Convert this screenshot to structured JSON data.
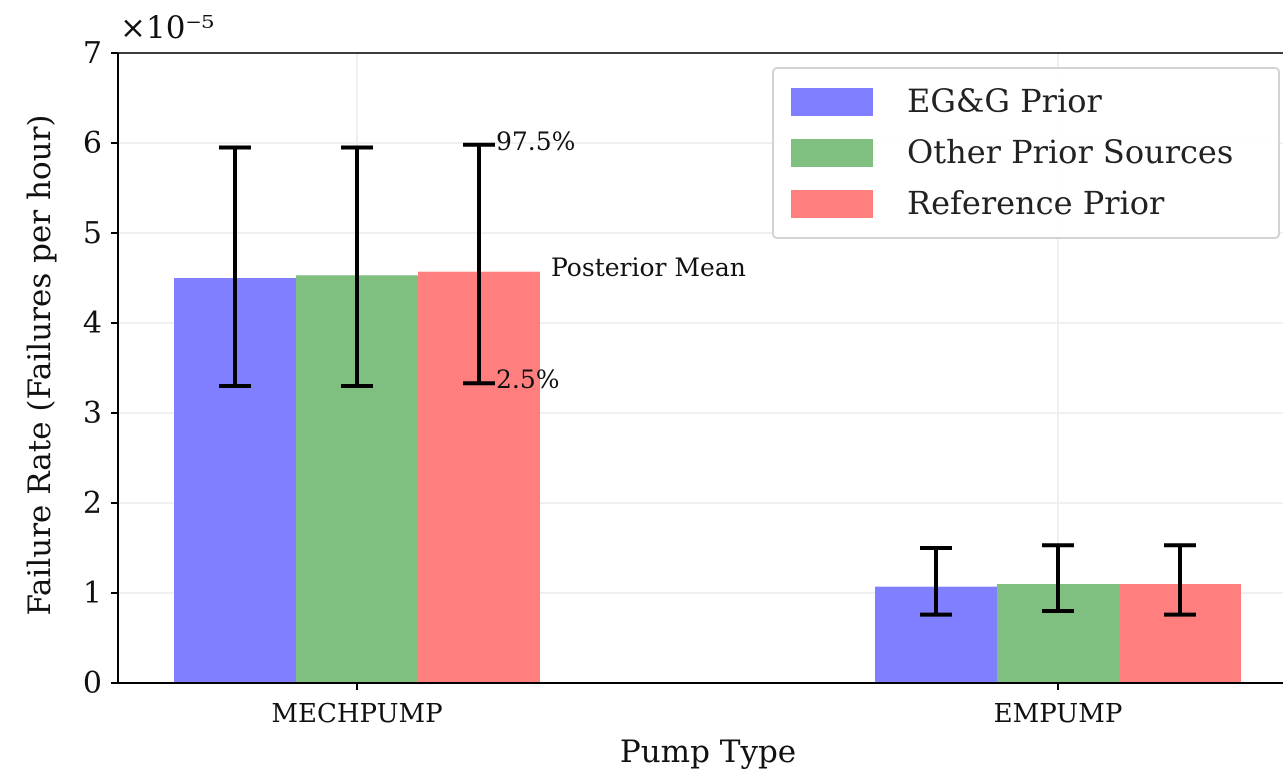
{
  "chart_data": {
    "type": "bar",
    "xlabel": "Pump Type",
    "ylabel": "Failure Rate (Failures per hour)",
    "scale_label": "×10⁻⁵",
    "categories": [
      "MECHPUMP",
      "EMPUMP"
    ],
    "ylim": [
      0,
      7
    ],
    "yticks": [
      "0",
      "1",
      "2",
      "3",
      "4",
      "5",
      "6",
      "7"
    ],
    "grid": true,
    "legend_position": "top-right",
    "series": [
      {
        "name": "EG&G Prior",
        "color": "#7f7fff",
        "values": [
          4.5,
          1.07
        ],
        "lower": [
          3.3,
          0.76
        ],
        "upper": [
          5.95,
          1.5
        ]
      },
      {
        "name": "Other Prior Sources",
        "color": "#7fbf7f",
        "values": [
          4.53,
          1.1
        ],
        "lower": [
          3.3,
          0.8
        ],
        "upper": [
          5.95,
          1.53
        ]
      },
      {
        "name": "Reference Prior",
        "color": "#ff7f7f",
        "values": [
          4.57,
          1.1
        ],
        "lower": [
          3.33,
          0.76
        ],
        "upper": [
          5.98,
          1.53
        ]
      }
    ],
    "annotations": {
      "upper": "97.5%",
      "lower": "2.5%",
      "mean": "Posterior Mean"
    }
  }
}
